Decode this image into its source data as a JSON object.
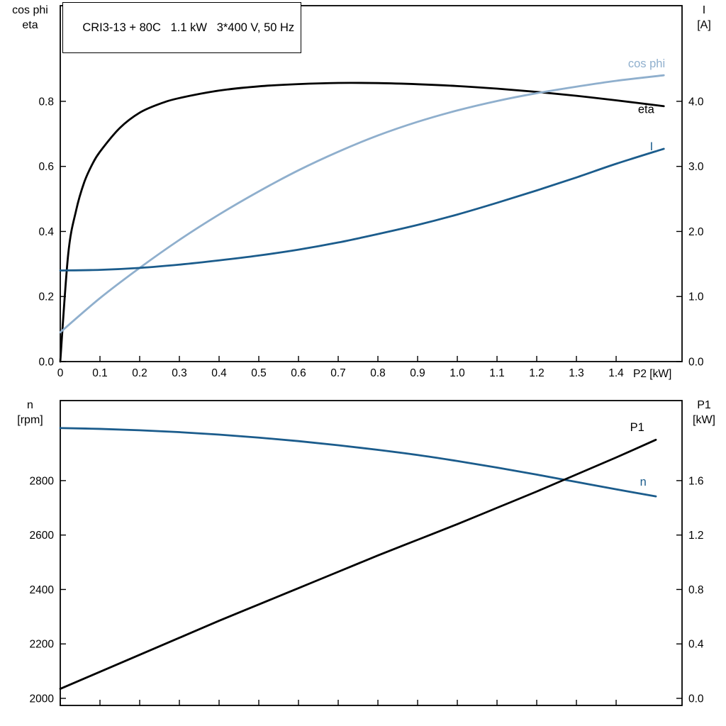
{
  "chart_data": [
    {
      "type": "line",
      "name": "motor-efficiency-chart",
      "title": "CRI3-13 + 80C   1.1 kW   3*400 V, 50 Hz",
      "x": {
        "min": 0,
        "max": 1.566,
        "axis_label": "P2 [kW]",
        "show_tick_labels": true,
        "ticks": [
          0,
          0.1,
          0.2,
          0.3,
          0.4,
          0.5,
          0.6,
          0.7,
          0.8,
          0.9,
          1.0,
          1.1,
          1.2,
          1.3,
          1.4
        ],
        "tick_labels": [
          "0",
          "0.1",
          "0.2",
          "0.3",
          "0.4",
          "0.5",
          "0.6",
          "0.7",
          "0.8",
          "0.9",
          "1.0",
          "1.1",
          "1.2",
          "1.3",
          "1.4"
        ]
      },
      "left": {
        "min": 0,
        "max": 1.094,
        "title_lines": [
          "cos phi",
          "eta"
        ],
        "ticks": [
          0,
          0.2,
          0.4,
          0.6,
          0.8
        ],
        "tick_labels": [
          "0.0",
          "0.2",
          "0.4",
          "0.6",
          "0.8"
        ]
      },
      "right": {
        "min": 0,
        "max": 5.47,
        "title_lines": [
          "I",
          "[A]"
        ],
        "ticks": [
          0,
          1,
          2,
          3,
          4
        ],
        "tick_labels": [
          "0.0",
          "1.0",
          "2.0",
          "3.0",
          "4.0"
        ]
      },
      "series": [
        {
          "name": "eta",
          "axis": "left",
          "color": "#000000",
          "width": 2.8,
          "label": "eta",
          "label_color": "#000000",
          "label_pos": [
            1.455,
            0.775
          ],
          "points": [
            [
              0,
              0
            ],
            [
              0.02,
              0.33
            ],
            [
              0.04,
              0.465
            ],
            [
              0.06,
              0.55
            ],
            [
              0.08,
              0.605
            ],
            [
              0.1,
              0.645
            ],
            [
              0.15,
              0.718
            ],
            [
              0.2,
              0.765
            ],
            [
              0.25,
              0.792
            ],
            [
              0.3,
              0.81
            ],
            [
              0.4,
              0.833
            ],
            [
              0.5,
              0.846
            ],
            [
              0.6,
              0.853
            ],
            [
              0.7,
              0.8565
            ],
            [
              0.8,
              0.856
            ],
            [
              0.9,
              0.8525
            ],
            [
              1.0,
              0.847
            ],
            [
              1.1,
              0.839
            ],
            [
              1.2,
              0.829
            ],
            [
              1.3,
              0.817
            ],
            [
              1.4,
              0.803
            ],
            [
              1.52,
              0.785
            ]
          ]
        },
        {
          "name": "cos phi",
          "axis": "left",
          "color": "#8fafcd",
          "width": 2.8,
          "label": "cos phi",
          "label_color": "#8fafcd",
          "label_pos": [
            1.43,
            0.915
          ],
          "points": [
            [
              0,
              0.09
            ],
            [
              0.1,
              0.195
            ],
            [
              0.2,
              0.288
            ],
            [
              0.3,
              0.374
            ],
            [
              0.4,
              0.452
            ],
            [
              0.5,
              0.523
            ],
            [
              0.6,
              0.588
            ],
            [
              0.7,
              0.645
            ],
            [
              0.8,
              0.695
            ],
            [
              0.9,
              0.737
            ],
            [
              1.0,
              0.772
            ],
            [
              1.1,
              0.801
            ],
            [
              1.2,
              0.825
            ],
            [
              1.3,
              0.845
            ],
            [
              1.4,
              0.863
            ],
            [
              1.52,
              0.88
            ]
          ]
        },
        {
          "name": "I",
          "axis": "right",
          "color": "#1b5c8c",
          "width": 2.8,
          "label": "I",
          "label_color": "#1b5c8c",
          "label_pos": [
            1.485,
            3.3
          ],
          "points": [
            [
              0,
              1.4
            ],
            [
              0.1,
              1.41
            ],
            [
              0.2,
              1.44
            ],
            [
              0.3,
              1.49
            ],
            [
              0.4,
              1.555
            ],
            [
              0.5,
              1.63
            ],
            [
              0.6,
              1.72
            ],
            [
              0.7,
              1.83
            ],
            [
              0.8,
              1.96
            ],
            [
              0.9,
              2.1
            ],
            [
              1.0,
              2.26
            ],
            [
              1.1,
              2.44
            ],
            [
              1.2,
              2.63
            ],
            [
              1.3,
              2.83
            ],
            [
              1.4,
              3.04
            ],
            [
              1.52,
              3.27
            ]
          ]
        }
      ]
    },
    {
      "type": "line",
      "name": "speed-power-chart",
      "title": "",
      "x": {
        "min": 0,
        "max": 1.566,
        "axis_label": "",
        "show_tick_labels": false,
        "ticks": [
          0,
          0.1,
          0.2,
          0.3,
          0.4,
          0.5,
          0.6,
          0.7,
          0.8,
          0.9,
          1.0,
          1.1,
          1.2,
          1.3,
          1.4
        ],
        "tick_labels": []
      },
      "left": {
        "min": 1974,
        "max": 3094,
        "title_lines": [
          "n",
          "[rpm]"
        ],
        "ticks": [
          2000,
          2200,
          2400,
          2600,
          2800
        ],
        "tick_labels": [
          "2000",
          "2200",
          "2400",
          "2600",
          "2800"
        ]
      },
      "right": {
        "min": -0.052,
        "max": 2.188,
        "title_lines": [
          "P1",
          "[kW]"
        ],
        "ticks": [
          0,
          0.4,
          0.8,
          1.2,
          1.6
        ],
        "tick_labels": [
          "0.0",
          "0.4",
          "0.8",
          "1.2",
          "1.6"
        ]
      },
      "series": [
        {
          "name": "n",
          "axis": "left",
          "color": "#1b5c8c",
          "width": 2.8,
          "label": "n",
          "label_color": "#1b5c8c",
          "label_pos": [
            1.46,
            2795
          ],
          "points": [
            [
              0,
              2993
            ],
            [
              0.1,
              2990
            ],
            [
              0.2,
              2985
            ],
            [
              0.3,
              2978
            ],
            [
              0.4,
              2969
            ],
            [
              0.5,
              2958
            ],
            [
              0.6,
              2945
            ],
            [
              0.7,
              2930
            ],
            [
              0.8,
              2913
            ],
            [
              0.9,
              2894
            ],
            [
              1.0,
              2872
            ],
            [
              1.1,
              2848
            ],
            [
              1.2,
              2822
            ],
            [
              1.3,
              2795
            ],
            [
              1.4,
              2768
            ],
            [
              1.5,
              2742
            ]
          ]
        },
        {
          "name": "P1",
          "axis": "right",
          "color": "#000000",
          "width": 2.8,
          "label": "P1",
          "label_color": "#000000",
          "label_pos": [
            1.435,
            1.99
          ],
          "points": [
            [
              0,
              0.07
            ],
            [
              0.1,
              0.195
            ],
            [
              0.2,
              0.32
            ],
            [
              0.3,
              0.445
            ],
            [
              0.4,
              0.57
            ],
            [
              0.5,
              0.69
            ],
            [
              0.6,
              0.81
            ],
            [
              0.7,
              0.93
            ],
            [
              0.8,
              1.05
            ],
            [
              0.9,
              1.165
            ],
            [
              1.0,
              1.28
            ],
            [
              1.1,
              1.4
            ],
            [
              1.2,
              1.52
            ],
            [
              1.3,
              1.645
            ],
            [
              1.4,
              1.77
            ],
            [
              1.5,
              1.9
            ]
          ]
        }
      ]
    }
  ]
}
